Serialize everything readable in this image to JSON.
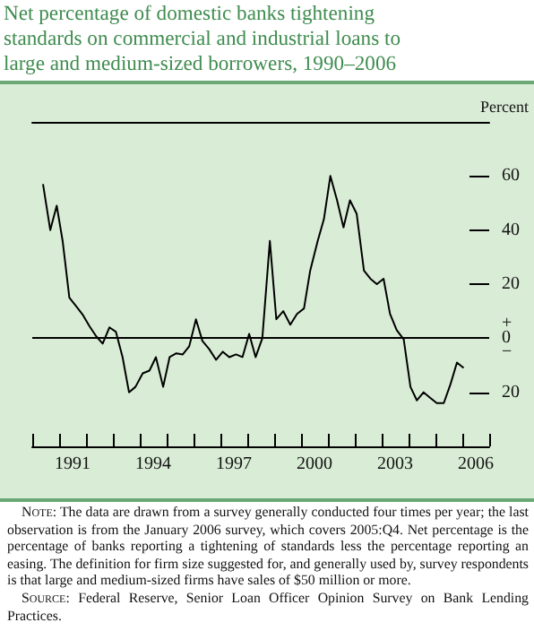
{
  "chart_data": {
    "type": "line",
    "title": "Net percentage of domestic banks tightening standards on commercial and industrial loans to large and medium-sized borrowers, 1990–2006",
    "ylabel": "Percent",
    "x": [
      1990.4,
      1990.67,
      1990.91,
      1991.13,
      1991.38,
      1991.62,
      1991.89,
      1992.13,
      1992.38,
      1992.62,
      1992.87,
      1993.11,
      1993.36,
      1993.6,
      1993.84,
      1994.11,
      1994.36,
      1994.6,
      1994.87,
      1995.11,
      1995.36,
      1995.6,
      1995.84,
      1996.09,
      1996.33,
      1996.58,
      1996.84,
      1997.09,
      1997.33,
      1997.58,
      1997.82,
      1998.07,
      1998.31,
      1998.56,
      1998.84,
      1999.08,
      1999.34,
      1999.6,
      1999.85,
      2000.11,
      2000.34,
      2000.62,
      2000.85,
      2001.09,
      2001.34,
      2001.58,
      2001.82,
      2002.07,
      2002.34,
      2002.58,
      2002.82,
      2003.07,
      2003.31,
      2003.56,
      2003.82,
      2004.07,
      2004.31,
      2004.56,
      2004.8,
      2005.05,
      2005.31,
      2005.56,
      2005.8,
      2006.05
    ],
    "series": [
      {
        "color": "#000000",
        "values": [
          57,
          40,
          49,
          36,
          15,
          12,
          8.5,
          4.4,
          0.7,
          -2,
          4,
          2.4,
          -7,
          -20,
          -18,
          -13,
          -12,
          -7,
          -18,
          -7,
          -5.6,
          -6,
          -3,
          7,
          -1,
          -4,
          -8,
          -5,
          -7,
          -6,
          -7,
          1.6,
          -7,
          0,
          36,
          7,
          10,
          5,
          9,
          11,
          25,
          36,
          44,
          60,
          51,
          41,
          51,
          46,
          25,
          22,
          20,
          22,
          9,
          3,
          -0.4,
          -18,
          -23,
          -20,
          -22,
          -24,
          -24,
          -17,
          -9,
          -11
        ]
      }
    ],
    "xlim": [
      1990,
      2007
    ],
    "xticks": [
      {
        "value": 1990,
        "label": null
      },
      {
        "value": 1991,
        "label": null
      },
      {
        "value": 1991.5,
        "label": "1991"
      },
      {
        "value": 1992,
        "label": null
      },
      {
        "value": 1993,
        "label": null
      },
      {
        "value": 1994,
        "label": null
      },
      {
        "value": 1994.5,
        "label": "1994"
      },
      {
        "value": 1995,
        "label": null
      },
      {
        "value": 1996,
        "label": null
      },
      {
        "value": 1997,
        "label": null
      },
      {
        "value": 1997.5,
        "label": "1997"
      },
      {
        "value": 1998,
        "label": null
      },
      {
        "value": 1999,
        "label": null
      },
      {
        "value": 2000,
        "label": null
      },
      {
        "value": 2000.5,
        "label": "2000"
      },
      {
        "value": 2001,
        "label": null
      },
      {
        "value": 2002,
        "label": null
      },
      {
        "value": 2003,
        "label": null
      },
      {
        "value": 2003.5,
        "label": "2003"
      },
      {
        "value": 2004,
        "label": null
      },
      {
        "value": 2005,
        "label": null
      },
      {
        "value": 2006,
        "label": null
      },
      {
        "value": 2006.5,
        "label": "2006"
      },
      {
        "value": 2007,
        "label": null
      }
    ],
    "ylim": [
      -40,
      80
    ],
    "yticks": [
      {
        "value": -20,
        "label": "20"
      },
      {
        "value": 0,
        "label": "+\n0\n−"
      },
      20,
      40,
      60
    ],
    "ref_lines": [
      {
        "axis": "y",
        "value": 0,
        "label": null,
        "color": "#000000"
      }
    ],
    "grid": false,
    "marker": "none",
    "line_style": "solid",
    "annotations": [
      "Note: The data are drawn from a survey generally conducted four times per year; the last observation is from the January 2006 survey, which covers 2005:Q4. Net percentage is the percentage of banks reporting a tightening of standards less the percentage reporting an easing. The definition for firm size suggested for, and generally used by, survey respondents is that large and medium-sized firms have sales of $50 million or more.",
      "Source: Federal Reserve, Senior Loan Officer Opinion Survey on Bank Lending Practices."
    ]
  }
}
